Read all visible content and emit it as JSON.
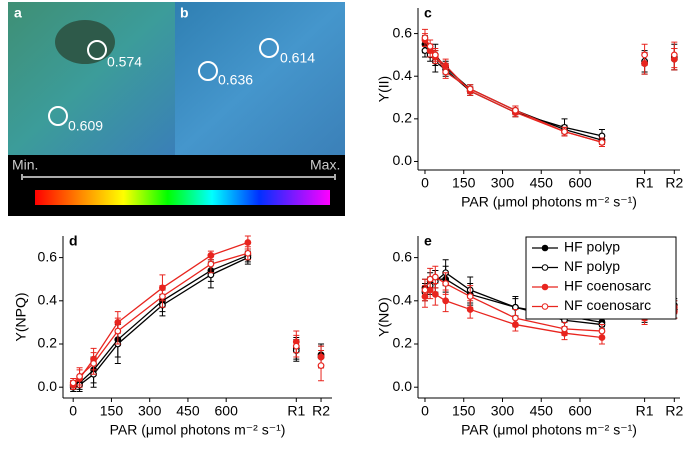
{
  "panels": [
    {
      "label": "a",
      "annotations": [
        "0.574",
        "0.609"
      ]
    },
    {
      "label": "b",
      "annotations": [
        "0.636",
        "0.614"
      ]
    }
  ],
  "colorbar": {
    "min_label": "Min.",
    "max_label": "Max."
  },
  "chart_data": [
    {
      "type": "line",
      "panel_label": "c",
      "y_label": "Y(II)",
      "x_label": "PAR (μmol photons m⁻² s⁻¹)",
      "x": [
        0,
        20,
        40,
        80,
        175,
        350,
        540,
        685
      ],
      "recovery_x": [
        850,
        965
      ],
      "xlim": [
        -27,
        987
      ],
      "xticks": [
        0,
        150,
        300,
        450,
        600,
        {
          "value": 850,
          "label": "R1"
        },
        {
          "value": 965,
          "label": "R2"
        }
      ],
      "ylim": [
        -0.04,
        0.72
      ],
      "yticks": [
        {
          "value": 0,
          "label": "0.0"
        },
        0.2,
        0.4,
        0.6
      ],
      "series": [
        {
          "color": "#000000",
          "marker": "filled",
          "values": [
            0.55,
            0.52,
            0.5,
            0.44,
            0.34,
            0.24,
            0.15,
            0.1
          ],
          "errors": [
            0.04,
            0.03,
            0.05,
            0.03,
            0.02,
            0.02,
            0.02,
            0.02
          ],
          "recovery_values": [
            0.46,
            0.48
          ],
          "recovery_errors": [
            0.05,
            0.05
          ]
        },
        {
          "color": "#000000",
          "marker": "open",
          "values": [
            0.52,
            0.5,
            0.47,
            0.43,
            0.33,
            0.23,
            0.16,
            0.12
          ],
          "errors": [
            0.03,
            0.03,
            0.05,
            0.03,
            0.02,
            0.02,
            0.04,
            0.03
          ],
          "recovery_values": [
            0.47,
            0.49
          ],
          "recovery_errors": [
            0.05,
            0.06
          ]
        },
        {
          "color": "#e8251f",
          "marker": "filled",
          "values": [
            0.57,
            0.52,
            0.49,
            0.45,
            0.33,
            0.23,
            0.14,
            0.09
          ],
          "errors": [
            0.03,
            0.03,
            0.03,
            0.03,
            0.02,
            0.02,
            0.02,
            0.02
          ],
          "recovery_values": [
            0.46,
            0.48
          ],
          "recovery_errors": [
            0.05,
            0.05
          ]
        },
        {
          "color": "#e8251f",
          "marker": "open",
          "values": [
            0.58,
            0.54,
            0.5,
            0.42,
            0.34,
            0.24,
            0.14,
            0.09
          ],
          "errors": [
            0.04,
            0.03,
            0.03,
            0.03,
            0.02,
            0.02,
            0.02,
            0.02
          ],
          "recovery_values": [
            0.5,
            0.5
          ],
          "recovery_errors": [
            0.05,
            0.06
          ]
        }
      ]
    },
    {
      "type": "line",
      "panel_label": "d",
      "y_label": "Y(NPQ)",
      "x_label": "PAR (μmol photons m⁻² s⁻¹)",
      "x": [
        0,
        25,
        80,
        175,
        350,
        540,
        685
      ],
      "recovery_x": [
        875,
        972
      ],
      "xlim": [
        -40,
        1015
      ],
      "xticks": [
        0,
        150,
        300,
        450,
        600,
        {
          "value": 875,
          "label": "R1"
        },
        {
          "value": 972,
          "label": "R2"
        }
      ],
      "ylim": [
        -0.05,
        0.7
      ],
      "yticks": [
        {
          "value": 0,
          "label": "0.0"
        },
        0.2,
        0.4,
        0.6
      ],
      "series": [
        {
          "color": "#000000",
          "marker": "filled",
          "values": [
            0.01,
            0.02,
            0.08,
            0.22,
            0.4,
            0.54,
            0.61
          ],
          "errors": [
            0.02,
            0.03,
            0.06,
            0.08,
            0.05,
            0.05,
            0.03
          ],
          "recovery_values": [
            0.18,
            0.15
          ],
          "recovery_errors": [
            0.05,
            0.05
          ]
        },
        {
          "color": "#000000",
          "marker": "open",
          "values": [
            0.0,
            0.01,
            0.06,
            0.2,
            0.38,
            0.52,
            0.6
          ],
          "errors": [
            0.02,
            0.03,
            0.06,
            0.09,
            0.05,
            0.06,
            0.03
          ],
          "recovery_values": [
            0.17,
            0.14
          ],
          "recovery_errors": [
            0.05,
            0.05
          ]
        },
        {
          "color": "#e8251f",
          "marker": "filled",
          "values": [
            0.01,
            0.04,
            0.13,
            0.3,
            0.46,
            0.61,
            0.67
          ],
          "errors": [
            0.02,
            0.04,
            0.05,
            0.05,
            0.06,
            0.02,
            0.03
          ],
          "recovery_values": [
            0.21,
            0.14
          ],
          "recovery_errors": [
            0.05,
            0.05
          ]
        },
        {
          "color": "#e8251f",
          "marker": "open",
          "values": [
            0.02,
            0.05,
            0.11,
            0.26,
            0.42,
            0.57,
            0.62
          ],
          "errors": [
            0.02,
            0.04,
            0.05,
            0.06,
            0.05,
            0.04,
            0.03
          ],
          "recovery_values": [
            0.19,
            0.1
          ],
          "recovery_errors": [
            0.05,
            0.07
          ]
        }
      ]
    },
    {
      "type": "line",
      "panel_label": "e",
      "y_label": "Y(NO)",
      "x_label": "PAR (μmol photons m⁻² s⁻¹)",
      "x": [
        0,
        20,
        40,
        80,
        175,
        350,
        540,
        685
      ],
      "recovery_x": [
        850,
        965
      ],
      "xlim": [
        -27,
        987
      ],
      "xticks": [
        0,
        150,
        300,
        450,
        600,
        {
          "value": 850,
          "label": "R1"
        },
        {
          "value": 965,
          "label": "R2"
        }
      ],
      "ylim": [
        -0.05,
        0.7
      ],
      "yticks": [
        {
          "value": 0,
          "label": "0.0"
        },
        0.2,
        0.4,
        0.6
      ],
      "legend": "top-right",
      "series": [
        {
          "name": "HF polyp",
          "color": "#000000",
          "marker": "filled",
          "values": [
            0.46,
            0.49,
            0.5,
            0.5,
            0.43,
            0.37,
            0.33,
            0.3
          ],
          "errors": [
            0.04,
            0.04,
            0.04,
            0.06,
            0.05,
            0.04,
            0.03,
            0.02
          ],
          "recovery_values": [
            0.35,
            0.38
          ],
          "recovery_errors": [
            0.03,
            0.03
          ]
        },
        {
          "name": "NF polyp",
          "color": "#000000",
          "marker": "open",
          "values": [
            0.44,
            0.47,
            0.49,
            0.53,
            0.45,
            0.37,
            0.31,
            0.29
          ],
          "errors": [
            0.04,
            0.04,
            0.05,
            0.06,
            0.06,
            0.05,
            0.03,
            0.02
          ],
          "recovery_values": [
            0.33,
            0.36
          ],
          "recovery_errors": [
            0.03,
            0.04
          ]
        },
        {
          "name": "HF coenosarc",
          "color": "#e8251f",
          "marker": "filled",
          "values": [
            0.42,
            0.45,
            0.43,
            0.4,
            0.36,
            0.29,
            0.25,
            0.23
          ],
          "errors": [
            0.05,
            0.04,
            0.05,
            0.05,
            0.04,
            0.03,
            0.03,
            0.03
          ],
          "recovery_values": [
            0.32,
            0.35
          ],
          "recovery_errors": [
            0.03,
            0.03
          ]
        },
        {
          "name": "NF coenosarc",
          "color": "#e8251f",
          "marker": "open",
          "values": [
            0.45,
            0.5,
            0.51,
            0.48,
            0.42,
            0.32,
            0.27,
            0.26
          ],
          "errors": [
            0.05,
            0.05,
            0.05,
            0.05,
            0.05,
            0.04,
            0.03,
            0.03
          ],
          "recovery_values": [
            0.34,
            0.37
          ],
          "recovery_errors": [
            0.03,
            0.03
          ]
        }
      ]
    }
  ]
}
